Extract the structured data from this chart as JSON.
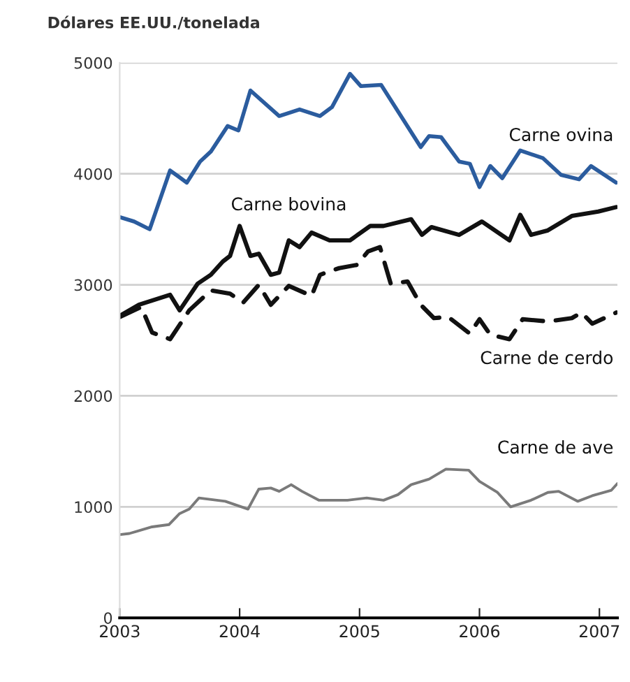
{
  "chart_data": {
    "type": "line",
    "ylabel": "Dólares EE.UU./tonelada",
    "xlim": [
      2003,
      2007.15
    ],
    "xticks": [
      2003,
      2004,
      2005,
      2006,
      2007
    ],
    "ylim": [
      0,
      5000
    ],
    "yticks": [
      0,
      1000,
      2000,
      3000,
      4000,
      5000
    ],
    "grid": "y",
    "legend": false,
    "marker": "none",
    "series": [
      {
        "name": "Carne ovina",
        "color": "#2b5c9e",
        "line_style": "solid",
        "x": [
          2003.0,
          2003.12,
          2003.25,
          2003.42,
          2003.56,
          2003.67,
          2003.76,
          2003.9,
          2003.99,
          2004.09,
          2004.33,
          2004.5,
          2004.67,
          2004.77,
          2004.92,
          2005.01,
          2005.18,
          2005.51,
          2005.58,
          2005.68,
          2005.83,
          2005.92,
          2006.0,
          2006.09,
          2006.19,
          2006.34,
          2006.53,
          2006.68,
          2006.83,
          2006.93,
          2007.14
        ],
        "values": [
          3610,
          3570,
          3500,
          4030,
          3920,
          4110,
          4200,
          4430,
          4390,
          4750,
          4520,
          4580,
          4520,
          4600,
          4900,
          4790,
          4800,
          4240,
          4340,
          4330,
          4110,
          4090,
          3880,
          4070,
          3960,
          4210,
          4140,
          3990,
          3950,
          4070,
          3920
        ]
      },
      {
        "name": "Carne bovina",
        "color": "#111111",
        "line_style": "solid",
        "x": [
          2003.0,
          2003.16,
          2003.42,
          2003.5,
          2003.65,
          2003.76,
          2003.86,
          2003.92,
          2004.0,
          2004.09,
          2004.16,
          2004.26,
          2004.33,
          2004.41,
          2004.5,
          2004.6,
          2004.75,
          2004.92,
          2005.09,
          2005.2,
          2005.43,
          2005.52,
          2005.6,
          2005.83,
          2006.02,
          2006.25,
          2006.34,
          2006.43,
          2006.57,
          2006.77,
          2006.99,
          2007.14
        ],
        "values": [
          2720,
          2820,
          2910,
          2770,
          3010,
          3090,
          3210,
          3260,
          3530,
          3260,
          3280,
          3090,
          3110,
          3400,
          3340,
          3470,
          3400,
          3400,
          3530,
          3530,
          3590,
          3450,
          3520,
          3450,
          3570,
          3400,
          3630,
          3450,
          3490,
          3620,
          3660,
          3700
        ]
      },
      {
        "name": "Carne de cerdo",
        "color": "#111111",
        "line_style": "dashed",
        "x": [
          2003.0,
          2003.18,
          2003.27,
          2003.42,
          2003.58,
          2003.76,
          2003.92,
          2004.03,
          2004.16,
          2004.26,
          2004.41,
          2004.6,
          2004.67,
          2004.83,
          2004.98,
          2005.07,
          2005.17,
          2005.26,
          2005.4,
          2005.51,
          2005.62,
          2005.74,
          2005.92,
          2006.0,
          2006.09,
          2006.25,
          2006.36,
          2006.57,
          2006.77,
          2006.85,
          2006.94,
          2007.14
        ],
        "values": [
          2710,
          2800,
          2570,
          2510,
          2770,
          2950,
          2920,
          2840,
          3000,
          2820,
          2990,
          2900,
          3090,
          3150,
          3180,
          3300,
          3340,
          3010,
          3030,
          2820,
          2700,
          2710,
          2560,
          2690,
          2550,
          2510,
          2690,
          2670,
          2700,
          2750,
          2650,
          2750
        ]
      },
      {
        "name": "Carne de ave",
        "color": "#7a7a7a",
        "line_style": "solid",
        "x": [
          2003.0,
          2003.08,
          2003.27,
          2003.41,
          2003.5,
          2003.58,
          2003.66,
          2003.88,
          2004.07,
          2004.16,
          2004.26,
          2004.33,
          2004.43,
          2004.52,
          2004.66,
          2004.9,
          2005.06,
          2005.2,
          2005.32,
          2005.43,
          2005.58,
          2005.72,
          2005.91,
          2006.0,
          2006.15,
          2006.26,
          2006.43,
          2006.57,
          2006.66,
          2006.82,
          2006.94,
          2007.1,
          2007.15
        ],
        "values": [
          750,
          760,
          820,
          840,
          940,
          980,
          1080,
          1050,
          980,
          1160,
          1170,
          1140,
          1200,
          1140,
          1060,
          1060,
          1080,
          1060,
          1110,
          1200,
          1250,
          1340,
          1330,
          1230,
          1130,
          1000,
          1060,
          1130,
          1140,
          1050,
          1100,
          1150,
          1210
        ]
      }
    ]
  }
}
